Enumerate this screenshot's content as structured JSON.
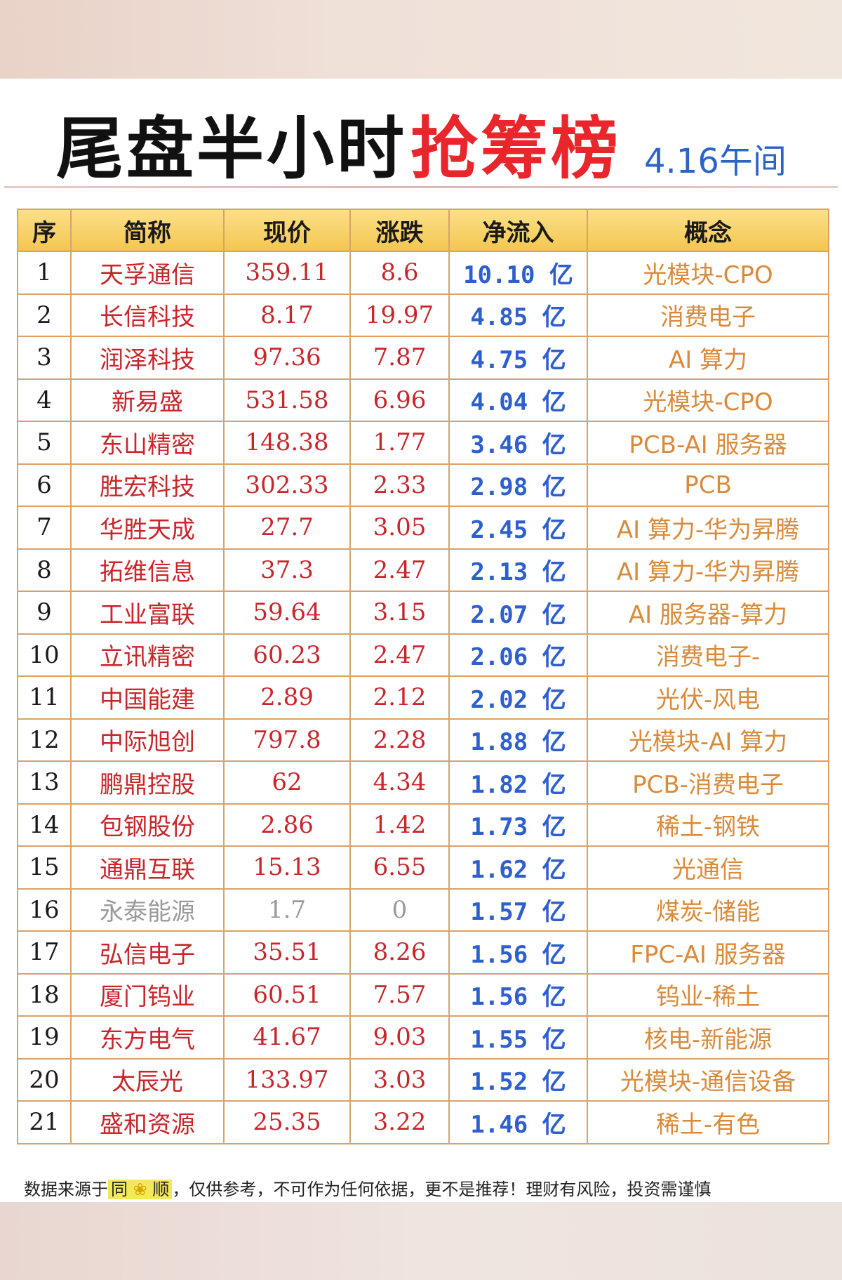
{
  "title": {
    "main": "尾盘半小时",
    "highlight": "抢筹榜",
    "date": "4.16午间"
  },
  "table": {
    "headers": [
      "序",
      "简称",
      "现价",
      "涨跌",
      "净流入",
      "概念"
    ],
    "rows": [
      {
        "idx": "1",
        "name": "天孚通信",
        "price": "359.11",
        "change": "8.6",
        "inflow": "10.10 亿",
        "concept": "光模块-CPO"
      },
      {
        "idx": "2",
        "name": "长信科技",
        "price": "8.17",
        "change": "19.97",
        "inflow": "4.85 亿",
        "concept": "消费电子"
      },
      {
        "idx": "3",
        "name": "润泽科技",
        "price": "97.36",
        "change": "7.87",
        "inflow": "4.75 亿",
        "concept": "AI 算力"
      },
      {
        "idx": "4",
        "name": "新易盛",
        "price": "531.58",
        "change": "6.96",
        "inflow": "4.04 亿",
        "concept": "光模块-CPO"
      },
      {
        "idx": "5",
        "name": "东山精密",
        "price": "148.38",
        "change": "1.77",
        "inflow": "3.46 亿",
        "concept": "PCB-AI 服务器"
      },
      {
        "idx": "6",
        "name": "胜宏科技",
        "price": "302.33",
        "change": "2.33",
        "inflow": "2.98 亿",
        "concept": "PCB"
      },
      {
        "idx": "7",
        "name": "华胜天成",
        "price": "27.7",
        "change": "3.05",
        "inflow": "2.45 亿",
        "concept": "AI 算力-华为昇腾"
      },
      {
        "idx": "8",
        "name": "拓维信息",
        "price": "37.3",
        "change": "2.47",
        "inflow": "2.13 亿",
        "concept": "AI 算力-华为昇腾"
      },
      {
        "idx": "9",
        "name": "工业富联",
        "price": "59.64",
        "change": "3.15",
        "inflow": "2.07 亿",
        "concept": "AI 服务器-算力"
      },
      {
        "idx": "10",
        "name": "立讯精密",
        "price": "60.23",
        "change": "2.47",
        "inflow": "2.06 亿",
        "concept": "消费电子-"
      },
      {
        "idx": "11",
        "name": "中国能建",
        "price": "2.89",
        "change": "2.12",
        "inflow": "2.02 亿",
        "concept": "光伏-风电"
      },
      {
        "idx": "12",
        "name": "中际旭创",
        "price": "797.8",
        "change": "2.28",
        "inflow": "1.88 亿",
        "concept": "光模块-AI 算力"
      },
      {
        "idx": "13",
        "name": "鹏鼎控股",
        "price": "62",
        "change": "4.34",
        "inflow": "1.82 亿",
        "concept": "PCB-消费电子"
      },
      {
        "idx": "14",
        "name": "包钢股份",
        "price": "2.86",
        "change": "1.42",
        "inflow": "1.73 亿",
        "concept": "稀土-钢铁"
      },
      {
        "idx": "15",
        "name": "通鼎互联",
        "price": "15.13",
        "change": "6.55",
        "inflow": "1.62 亿",
        "concept": "光通信"
      },
      {
        "idx": "16",
        "name": "永泰能源",
        "price": "1.7",
        "change": "0",
        "inflow": "1.57 亿",
        "concept": "煤炭-储能",
        "neutral": true
      },
      {
        "idx": "17",
        "name": "弘信电子",
        "price": "35.51",
        "change": "8.26",
        "inflow": "1.56 亿",
        "concept": "FPC-AI 服务器"
      },
      {
        "idx": "18",
        "name": "厦门钨业",
        "price": "60.51",
        "change": "7.57",
        "inflow": "1.56 亿",
        "concept": "钨业-稀土"
      },
      {
        "idx": "19",
        "name": "东方电气",
        "price": "41.67",
        "change": "9.03",
        "inflow": "1.55 亿",
        "concept": "核电-新能源"
      },
      {
        "idx": "20",
        "name": "太辰光",
        "price": "133.97",
        "change": "3.03",
        "inflow": "1.52 亿",
        "concept": "光模块-通信设备"
      },
      {
        "idx": "21",
        "name": "盛和资源",
        "price": "25.35",
        "change": "3.22",
        "inflow": "1.46 亿",
        "concept": "稀土-有色"
      }
    ]
  },
  "footer": {
    "prefix": "数据来源于",
    "source_a": "同",
    "source_icon": "flower-icon",
    "source_b": "顺",
    "suffix": "，仅供参考，不可作为任何依据，更不是推荐！理财有风险，投资需谨慎"
  },
  "colors": {
    "title_red": "#e8262b",
    "date_blue": "#2d63c9",
    "stock_red": "#c8262b",
    "inflow_blue": "#2e5fcf",
    "concept_orange": "#d98a3a",
    "header_gold": "#f4c64f",
    "border": "#d8a26a",
    "neutral_gray": "#9a9a9a"
  }
}
